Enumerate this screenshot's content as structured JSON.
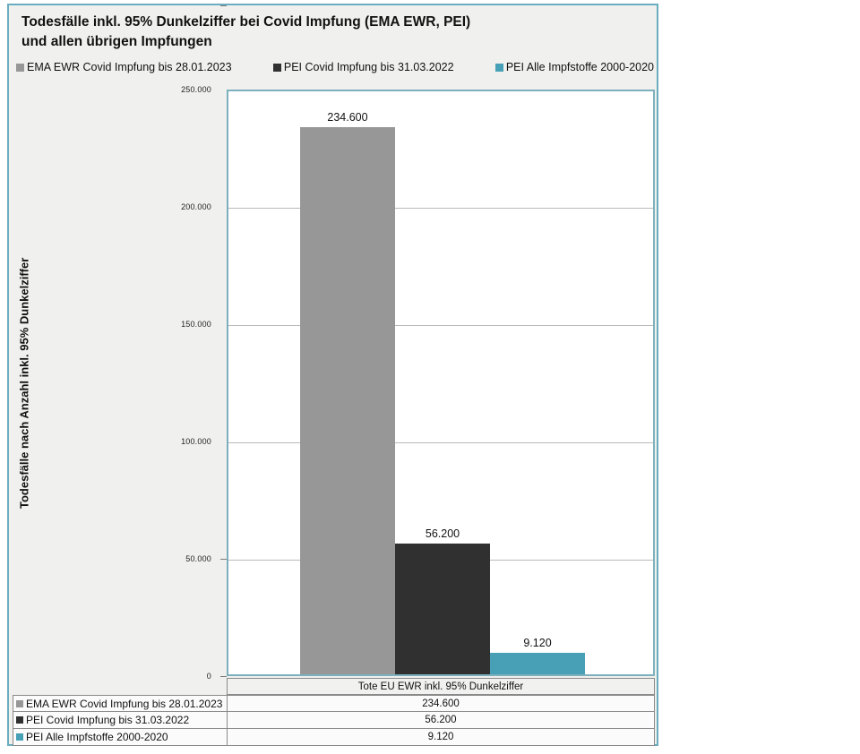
{
  "title": {
    "line1": "Todesfälle inkl. 95% Dunkelziffer bei Covid Impfung (EMA EWR, PEI)",
    "line2": "und allen übrigen Impfungen"
  },
  "legend": {
    "items": [
      {
        "label": "EMA EWR Covid Impfung bis 28.01.2023",
        "color": "#979797"
      },
      {
        "label": "PEI Covid Impfung bis 31.03.2022",
        "color": "#303030"
      },
      {
        "label": "PEI Alle Impfstoffe 2000-2020",
        "color": "#47a0b5"
      }
    ]
  },
  "chart_data": {
    "type": "bar",
    "title": "Todesfälle inkl. 95% Dunkelziffer bei Covid Impfung (EMA EWR, PEI) und allen übrigen Impfungen",
    "categories": [
      "Tote EU EWR inkl. 95% Dunkelziffer"
    ],
    "series": [
      {
        "name": "EMA EWR Covid Impfung bis 28.01.2023",
        "value": 234600,
        "value_label": "234.600",
        "color": "#979797"
      },
      {
        "name": "PEI Covid Impfung bis 31.03.2022",
        "value": 56200,
        "value_label": "56.200",
        "color": "#303030"
      },
      {
        "name": "PEI Alle Impfstoffe 2000-2020",
        "value": 9120,
        "value_label": "9.120",
        "color": "#47a0b5"
      }
    ],
    "xlabel": "",
    "ylabel": "Todesfälle nach Anzahl inkl. 95% Dunkelziffer",
    "ylim": [
      0,
      250000
    ],
    "yticks_top_to_bottom": [
      "250.000",
      "200.000",
      "150.000",
      "100.000",
      "50.000",
      "0"
    ],
    "grid": true,
    "legend_position": "top"
  },
  "axis": {
    "y_title": "Todesfälle nach Anzahl inkl. 95% Dunkelziffer",
    "ticks": [
      "250.000",
      "200.000",
      "150.000",
      "100.000",
      "50.000",
      "0"
    ],
    "x_category": "Tote EU EWR inkl. 95% Dunkelziffer"
  },
  "table": {
    "rows": [
      {
        "label": "EMA EWR Covid Impfung bis 28.01.2023",
        "value": "234.600"
      },
      {
        "label": "PEI Covid Impfung bis 31.03.2022",
        "value": "56.200"
      },
      {
        "label": "PEI Alle Impfstoffe 2000-2020",
        "value": "9.120"
      }
    ]
  },
  "colors": {
    "frame_border": "#6badc0",
    "plot_border": "#7db0bd",
    "panel_background": "#f0f0ee",
    "gridline": "#b9b9b9"
  }
}
